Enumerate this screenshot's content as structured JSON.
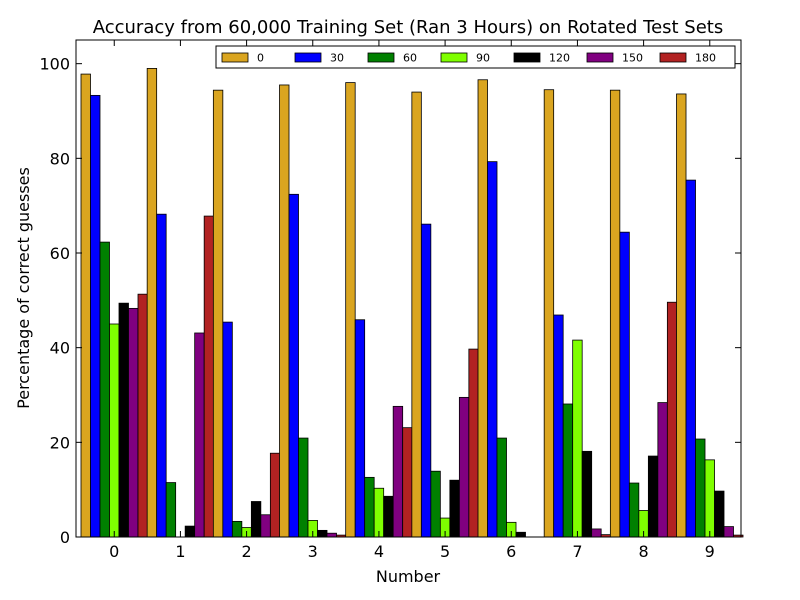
{
  "chart_data": {
    "type": "bar",
    "title": "Accuracy from 60,000 Training Set (Ran 3 Hours) on Rotated Test Sets",
    "xlabel": "Number",
    "ylabel": "Percentage of correct guesses",
    "categories": [
      "0",
      "1",
      "2",
      "3",
      "4",
      "5",
      "6",
      "7",
      "8",
      "9"
    ],
    "ylim": [
      0,
      105
    ],
    "yticks": [
      0,
      20,
      40,
      60,
      80,
      100
    ],
    "grid": false,
    "legend_position": "top-right",
    "series": [
      {
        "name": "0",
        "color": "#DAA520",
        "values": [
          97.8,
          99.0,
          94.4,
          95.5,
          96.0,
          94.0,
          96.6,
          94.5,
          94.4,
          93.6
        ]
      },
      {
        "name": "30",
        "color": "#0000FF",
        "values": [
          93.3,
          68.2,
          45.4,
          72.4,
          45.9,
          66.1,
          79.3,
          46.9,
          64.4,
          75.4
        ]
      },
      {
        "name": "60",
        "color": "#008000",
        "values": [
          62.3,
          11.5,
          3.3,
          20.9,
          12.6,
          13.9,
          20.9,
          28.1,
          11.4,
          20.7
        ]
      },
      {
        "name": "90",
        "color": "#7FFF00",
        "values": [
          45.0,
          0.0,
          2.0,
          3.5,
          10.3,
          4.0,
          3.1,
          41.6,
          5.6,
          16.3
        ]
      },
      {
        "name": "120",
        "color": "#000000",
        "values": [
          49.4,
          2.3,
          7.5,
          1.4,
          8.6,
          12.0,
          1.0,
          18.1,
          17.1,
          9.7
        ]
      },
      {
        "name": "150",
        "color": "#800080",
        "values": [
          48.3,
          43.1,
          4.7,
          0.8,
          27.6,
          29.5,
          0.0,
          1.7,
          28.4,
          2.2
        ]
      },
      {
        "name": "180",
        "color": "#B22222",
        "values": [
          51.3,
          67.8,
          17.7,
          0.4,
          23.1,
          39.7,
          0.0,
          0.5,
          49.6,
          0.4
        ]
      }
    ]
  }
}
